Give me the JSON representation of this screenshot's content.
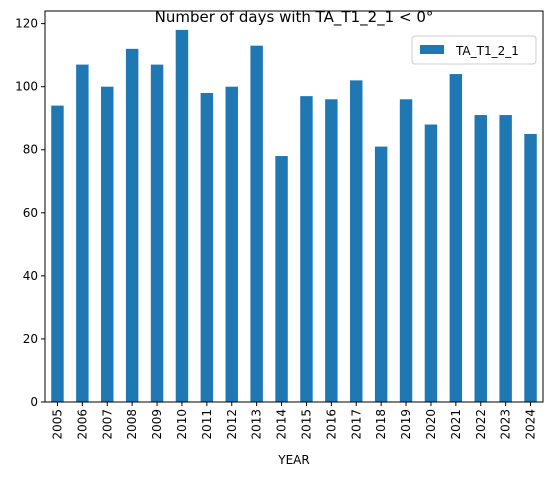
{
  "chart_data": {
    "type": "bar",
    "title": "Number of days with TA_T1_2_1 < 0°",
    "xlabel": "YEAR",
    "ylabel": "",
    "categories": [
      "2005",
      "2006",
      "2007",
      "2008",
      "2009",
      "2010",
      "2011",
      "2012",
      "2013",
      "2014",
      "2015",
      "2016",
      "2017",
      "2018",
      "2019",
      "2020",
      "2021",
      "2022",
      "2023",
      "2024"
    ],
    "series": [
      {
        "name": "TA_T1_2_1",
        "values": [
          94,
          107,
          100,
          112,
          107,
          118,
          98,
          100,
          113,
          78,
          97,
          96,
          102,
          81,
          96,
          88,
          104,
          91,
          91,
          85
        ],
        "color": "#1f77b4"
      }
    ],
    "ylim": [
      0,
      124
    ],
    "yticks": [
      0,
      20,
      40,
      60,
      80,
      100,
      120
    ],
    "grid": false,
    "legend_position": "top-right"
  }
}
